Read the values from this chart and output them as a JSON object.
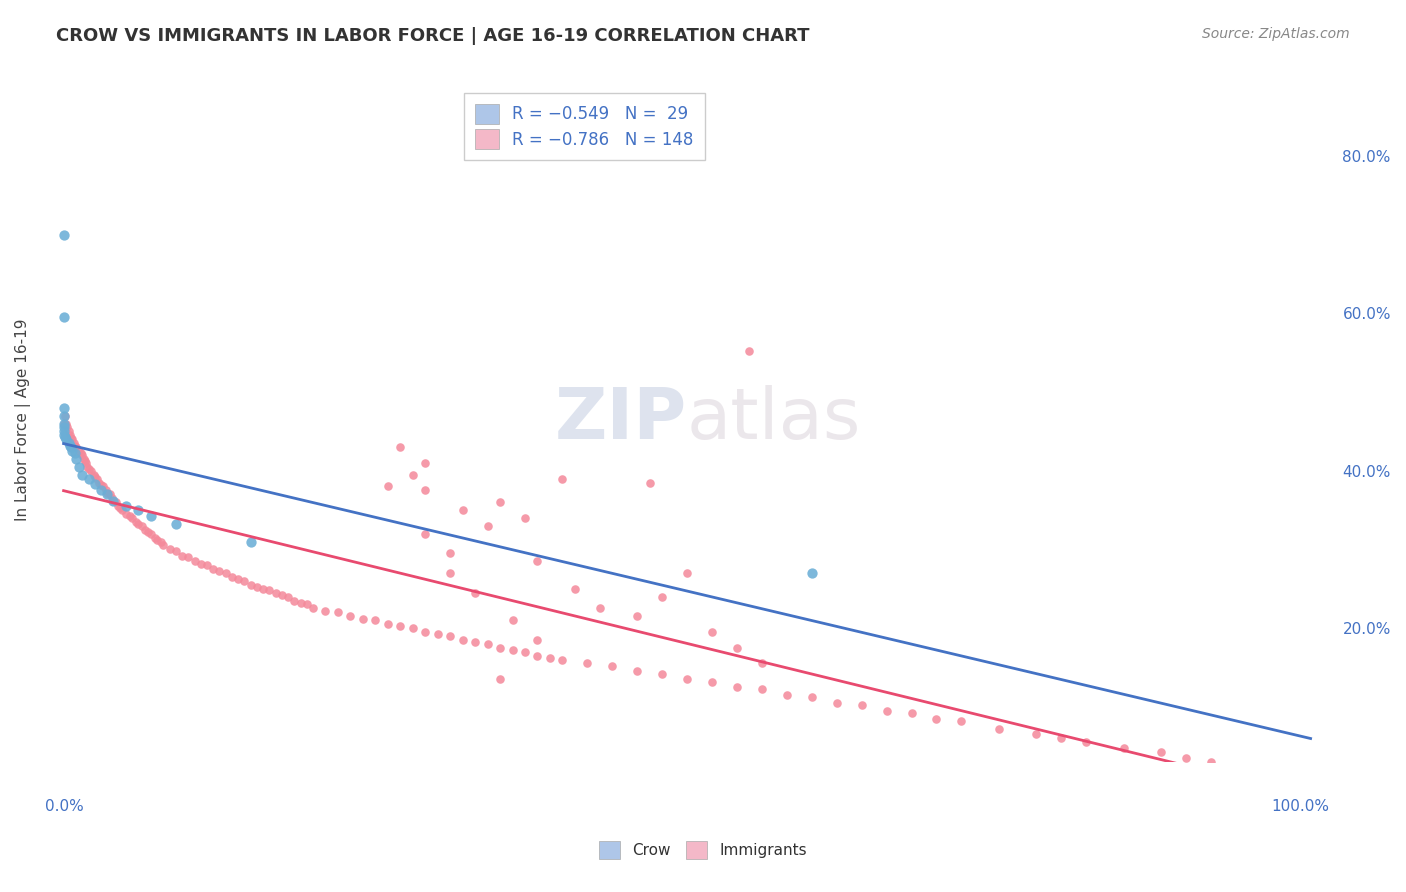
{
  "title": "CROW VS IMMIGRANTS IN LABOR FORCE | AGE 16-19 CORRELATION CHART",
  "source": "Source: ZipAtlas.com",
  "ylabel": "In Labor Force | Age 16-19",
  "crow_color": "#6baed6",
  "immigrants_color": "#f4899a",
  "crow_line_color": "#4472c4",
  "immigrants_line_color": "#e84a6f",
  "watermark_zip": "ZIP",
  "watermark_atlas": "atlas",
  "background_color": "#ffffff",
  "grid_color": "#cccccc",
  "crow_data_x": [
    0.0,
    0.0,
    0.0,
    0.0,
    0.0,
    0.0,
    0.0,
    0.0,
    0.001,
    0.002,
    0.004,
    0.005,
    0.006,
    0.007,
    0.009,
    0.01,
    0.012,
    0.015,
    0.02,
    0.025,
    0.03,
    0.035,
    0.04,
    0.05,
    0.06,
    0.07,
    0.09,
    0.15,
    0.6
  ],
  "crow_data_y": [
    0.7,
    0.595,
    0.48,
    0.47,
    0.46,
    0.455,
    0.45,
    0.445,
    0.443,
    0.44,
    0.435,
    0.432,
    0.43,
    0.425,
    0.422,
    0.415,
    0.405,
    0.395,
    0.39,
    0.383,
    0.375,
    0.37,
    0.362,
    0.355,
    0.35,
    0.342,
    0.332,
    0.31,
    0.27
  ],
  "immigrants_data_x": [
    0.0,
    0.001,
    0.002,
    0.003,
    0.004,
    0.005,
    0.006,
    0.007,
    0.008,
    0.009,
    0.01,
    0.012,
    0.014,
    0.015,
    0.016,
    0.017,
    0.018,
    0.019,
    0.02,
    0.022,
    0.024,
    0.025,
    0.027,
    0.028,
    0.03,
    0.032,
    0.034,
    0.035,
    0.037,
    0.039,
    0.04,
    0.042,
    0.044,
    0.045,
    0.047,
    0.05,
    0.053,
    0.055,
    0.058,
    0.06,
    0.063,
    0.065,
    0.068,
    0.07,
    0.073,
    0.075,
    0.078,
    0.08,
    0.085,
    0.09,
    0.095,
    0.1,
    0.105,
    0.11,
    0.115,
    0.12,
    0.125,
    0.13,
    0.135,
    0.14,
    0.145,
    0.15,
    0.155,
    0.16,
    0.165,
    0.17,
    0.175,
    0.18,
    0.185,
    0.19,
    0.195,
    0.2,
    0.21,
    0.22,
    0.23,
    0.24,
    0.25,
    0.26,
    0.27,
    0.28,
    0.29,
    0.3,
    0.31,
    0.32,
    0.33,
    0.34,
    0.35,
    0.36,
    0.37,
    0.38,
    0.39,
    0.4,
    0.42,
    0.44,
    0.46,
    0.48,
    0.5,
    0.52,
    0.54,
    0.56,
    0.58,
    0.6,
    0.62,
    0.64,
    0.66,
    0.68,
    0.7,
    0.72,
    0.75,
    0.78,
    0.8,
    0.82,
    0.85,
    0.88,
    0.9,
    0.92,
    0.95,
    0.97,
    0.98,
    0.99,
    0.4,
    0.35,
    0.28,
    0.32,
    0.29,
    0.31,
    0.26,
    0.34,
    0.38,
    0.29,
    0.27,
    0.31,
    0.33,
    0.29,
    0.38,
    0.36,
    0.41,
    0.43,
    0.37,
    0.35,
    0.5,
    0.55,
    0.48,
    0.46,
    0.52,
    0.54,
    0.56,
    0.47
  ],
  "immigrants_data_y": [
    0.46,
    0.47,
    0.46,
    0.455,
    0.45,
    0.445,
    0.442,
    0.44,
    0.435,
    0.432,
    0.43,
    0.425,
    0.422,
    0.42,
    0.415,
    0.412,
    0.41,
    0.405,
    0.402,
    0.4,
    0.395,
    0.392,
    0.39,
    0.385,
    0.382,
    0.38,
    0.375,
    0.372,
    0.37,
    0.365,
    0.362,
    0.36,
    0.355,
    0.352,
    0.35,
    0.345,
    0.342,
    0.34,
    0.335,
    0.332,
    0.33,
    0.325,
    0.322,
    0.32,
    0.315,
    0.312,
    0.31,
    0.305,
    0.3,
    0.298,
    0.292,
    0.29,
    0.285,
    0.282,
    0.28,
    0.275,
    0.272,
    0.27,
    0.265,
    0.262,
    0.26,
    0.255,
    0.252,
    0.25,
    0.248,
    0.245,
    0.242,
    0.24,
    0.235,
    0.232,
    0.23,
    0.225,
    0.222,
    0.22,
    0.215,
    0.212,
    0.21,
    0.205,
    0.202,
    0.2,
    0.195,
    0.192,
    0.19,
    0.185,
    0.182,
    0.18,
    0.175,
    0.172,
    0.17,
    0.165,
    0.162,
    0.16,
    0.155,
    0.152,
    0.145,
    0.142,
    0.135,
    0.132,
    0.125,
    0.122,
    0.115,
    0.112,
    0.105,
    0.102,
    0.095,
    0.092,
    0.085,
    0.082,
    0.072,
    0.065,
    0.06,
    0.055,
    0.048,
    0.042,
    0.035,
    0.03,
    0.022,
    0.018,
    0.015,
    0.012,
    0.39,
    0.36,
    0.395,
    0.35,
    0.32,
    0.295,
    0.38,
    0.33,
    0.285,
    0.41,
    0.43,
    0.27,
    0.245,
    0.375,
    0.185,
    0.21,
    0.25,
    0.225,
    0.34,
    0.135,
    0.27,
    0.552,
    0.24,
    0.215,
    0.195,
    0.175,
    0.155,
    0.385
  ]
}
